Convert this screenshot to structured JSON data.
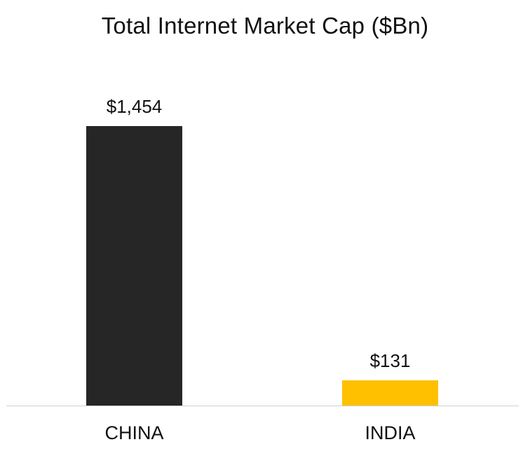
{
  "chart_data": {
    "type": "bar",
    "title": "Total Internet Market Cap ($Bn)",
    "categories": [
      "CHINA",
      "INDIA"
    ],
    "values": [
      1454,
      131
    ],
    "value_labels": [
      "$1,454",
      "$131"
    ],
    "colors": [
      "#262626",
      "#FFC000"
    ],
    "xlabel": "",
    "ylabel": "",
    "ylim": [
      0,
      1454
    ],
    "grid": false,
    "legend": null,
    "axis_visible": {
      "x_baseline": true,
      "y_axis": false
    }
  },
  "title": "Total Internet Market Cap ($Bn)",
  "bars": [
    {
      "category": "CHINA",
      "value": 1454,
      "label": "$1,454",
      "color": "#262626"
    },
    {
      "category": "INDIA",
      "value": 131,
      "label": "$131",
      "color": "#FFC000"
    }
  ]
}
